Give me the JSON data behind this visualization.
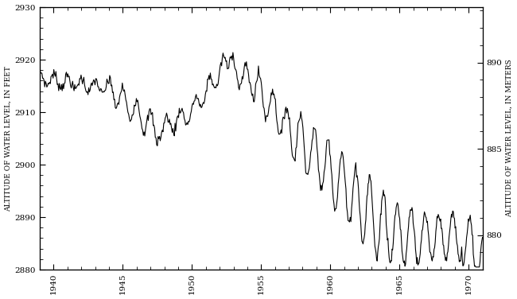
{
  "ylabel_left": "ALTITUDE OF WATER LEVEL, IN FEET",
  "ylabel_right": "ALTITUDE OF WATER LEVEL, IN METERS",
  "xlim": [
    1939,
    1971
  ],
  "ylim_feet": [
    2880,
    2930
  ],
  "ylim_meters": [
    878.0,
    893.2
  ],
  "yticks_feet": [
    2880,
    2890,
    2900,
    2910,
    2920,
    2930
  ],
  "yticks_meters": [
    880,
    885,
    890
  ],
  "xticks": [
    1940,
    1945,
    1950,
    1955,
    1960,
    1965,
    1970
  ],
  "line_color": "#000000",
  "line_width": 0.8,
  "bg_color": "#ffffff"
}
